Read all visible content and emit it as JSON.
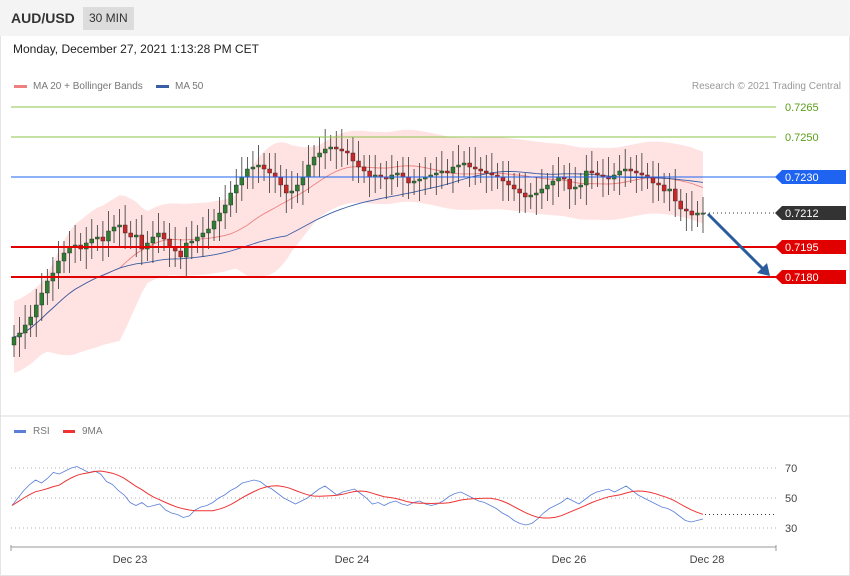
{
  "header": {
    "pair": "AUD/USD",
    "timeframe": "30 MIN",
    "datetime": "Monday, December 27, 2021 1:13:28 PM CET",
    "credit": "Research © 2021 Trading Central"
  },
  "legend": {
    "ma20": "MA 20 + Bollinger Bands",
    "ma50": "MA 50",
    "rsi": "RSI",
    "rsi_ma": "9MA"
  },
  "colors": {
    "ma20": "#f08080",
    "ma50": "#3a5ea6",
    "rsi": "#5b7fd6",
    "rsi_ma": "#e33",
    "bull": "#2e7d32",
    "bear": "#c62828",
    "support": "#e00000",
    "resistance_green": "#8bc34a",
    "pivot_blue": "#1e64f0",
    "arrow": "#2b5c9e"
  },
  "chart_data": [
    {
      "type": "candlestick",
      "title": "AUD/USD 30 MIN",
      "x_ticks": [
        "Dec 23",
        "Dec 24",
        "Dec 26",
        "Dec 28"
      ],
      "ylim": [
        0.71,
        0.729
      ],
      "levels": [
        {
          "value": 0.7265,
          "label": "0.7265",
          "kind": "resistance"
        },
        {
          "value": 0.725,
          "label": "0.7250",
          "kind": "resistance"
        },
        {
          "value": 0.723,
          "label": "0.7230",
          "kind": "pivot"
        },
        {
          "value": 0.7212,
          "label": "0.7212",
          "kind": "last"
        },
        {
          "value": 0.7195,
          "label": "0.7195",
          "kind": "support"
        },
        {
          "value": 0.718,
          "label": "0.7180",
          "kind": "support"
        }
      ],
      "close": [
        0.715,
        0.7152,
        0.7156,
        0.716,
        0.7166,
        0.7172,
        0.7178,
        0.7182,
        0.7188,
        0.7192,
        0.7195,
        0.7196,
        0.7194,
        0.7197,
        0.7199,
        0.72,
        0.7198,
        0.7203,
        0.7205,
        0.7206,
        0.7202,
        0.72,
        0.7201,
        0.7194,
        0.7197,
        0.72,
        0.7202,
        0.7199,
        0.7195,
        0.7193,
        0.719,
        0.7197,
        0.7198,
        0.72,
        0.7202,
        0.7204,
        0.7208,
        0.7212,
        0.7216,
        0.7222,
        0.7226,
        0.723,
        0.7234,
        0.7235,
        0.7236,
        0.7234,
        0.7232,
        0.723,
        0.7226,
        0.7222,
        0.7223,
        0.7226,
        0.723,
        0.7236,
        0.724,
        0.7242,
        0.7244,
        0.7245,
        0.7244,
        0.7243,
        0.7242,
        0.7238,
        0.7235,
        0.7233,
        0.723,
        0.7231,
        0.723,
        0.7229,
        0.7231,
        0.7232,
        0.723,
        0.7227,
        0.7228,
        0.7229,
        0.723,
        0.7231,
        0.7232,
        0.7233,
        0.7232,
        0.7235,
        0.7236,
        0.7237,
        0.7235,
        0.7234,
        0.7233,
        0.7232,
        0.7231,
        0.723,
        0.7228,
        0.7226,
        0.7224,
        0.7222,
        0.722,
        0.7221,
        0.7222,
        0.7224,
        0.7226,
        0.7228,
        0.723,
        0.7229,
        0.7224,
        0.7225,
        0.7226,
        0.7233,
        0.7232,
        0.7231,
        0.723,
        0.7229,
        0.7231,
        0.7233,
        0.7234,
        0.7233,
        0.7232,
        0.7231,
        0.723,
        0.7227,
        0.7226,
        0.7223,
        0.7224,
        0.7218,
        0.7214,
        0.7213,
        0.7211,
        0.7212,
        0.7212
      ]
    },
    {
      "type": "line",
      "title": "RSI",
      "series": [
        {
          "name": "RSI"
        },
        {
          "name": "9MA"
        }
      ],
      "y_ticks": [
        70,
        50,
        30
      ],
      "ylim": [
        20,
        80
      ],
      "rsi": [
        45,
        50,
        55,
        59,
        62,
        60,
        63,
        67,
        66,
        68,
        70,
        71,
        69,
        67,
        68,
        66,
        61,
        59,
        55,
        52,
        47,
        45,
        47,
        44,
        45,
        46,
        42,
        40,
        39,
        37,
        38,
        42,
        44,
        45,
        47,
        50,
        52,
        55,
        57,
        60,
        61,
        62,
        61,
        58,
        56,
        53,
        50,
        48,
        46,
        48,
        50,
        53,
        56,
        58,
        55,
        52,
        54,
        55,
        56,
        53,
        50,
        46,
        47,
        45,
        47,
        48,
        46,
        45,
        47,
        48,
        46,
        45,
        46,
        48,
        51,
        53,
        54,
        52,
        50,
        48,
        47,
        45,
        43,
        40,
        38,
        35,
        33,
        32,
        33,
        36,
        40,
        43,
        45,
        47,
        50,
        48,
        46,
        49,
        52,
        54,
        55,
        56,
        54,
        56,
        58,
        55,
        52,
        50,
        48,
        46,
        44,
        43,
        41,
        38,
        35,
        34,
        35,
        36
      ]
    }
  ]
}
